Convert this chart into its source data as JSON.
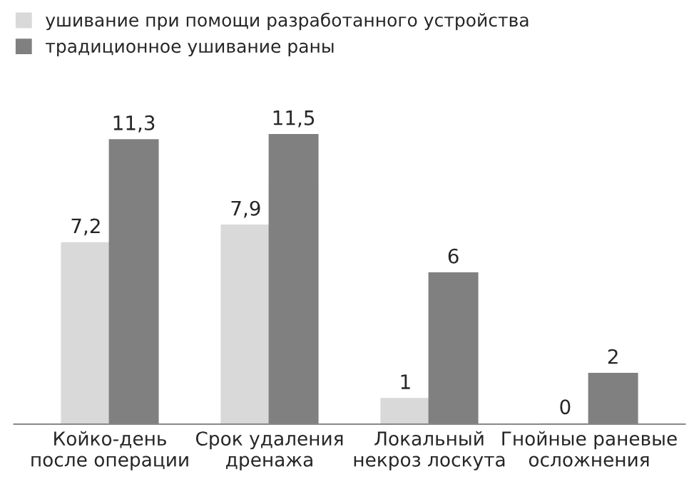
{
  "chart_data": {
    "type": "bar",
    "categories": [
      "Койко-день\nпосле операции",
      "Срок удаления\nдренажа",
      "Локальный\nнекроз лоскута",
      "Гнойные раневые\nосложнения"
    ],
    "series": [
      {
        "name": "ушивание при помощи разработанного устройства",
        "color": "#d9d9d9",
        "values": [
          7.2,
          7.9,
          1,
          0
        ],
        "value_labels": [
          "7,2",
          "7,9",
          "1",
          "0"
        ]
      },
      {
        "name": "традиционное ушивание раны",
        "color": "#808080",
        "values": [
          11.3,
          11.5,
          6,
          2
        ],
        "value_labels": [
          "11,3",
          "11,5",
          "6",
          "2"
        ]
      }
    ],
    "legend": "top left",
    "grid": false
  }
}
